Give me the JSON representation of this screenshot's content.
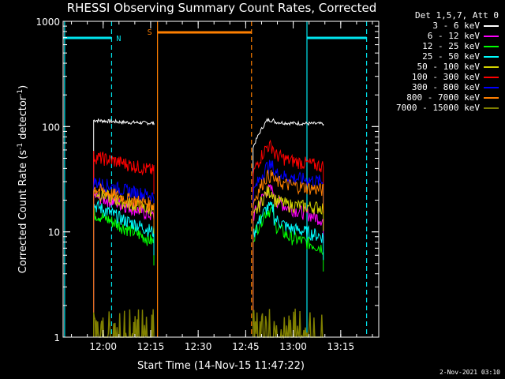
{
  "title": "RHESSI Observing Summary Count Rates, Corrected",
  "timestamp": "2-Nov-2021 03:10",
  "legend_header": "Det 1,5,7, Att 0",
  "colors": {
    "background": "#000000",
    "axes": "#ffffff",
    "night": "#00e5ee",
    "saa": "#ff7f00"
  },
  "chart_data": {
    "type": "line",
    "xlabel": "Start Time (14-Nov-15 11:47:22)",
    "ylabel_base": "Corrected Count Rate (s",
    "ylabel_mid": " detector",
    "ylabel_end": ")",
    "ylabel_exp": "-1",
    "y_scale": "log",
    "ylim": [
      1,
      1000
    ],
    "xlim": [
      "11:47:22",
      "13:27:00"
    ],
    "x_ticks": [
      "12:00",
      "12:15",
      "12:30",
      "12:45",
      "13:00",
      "13:15"
    ],
    "y_ticks": [
      "1",
      "10",
      "100",
      "1000"
    ],
    "flags": [
      {
        "label": "N",
        "color": "#00e5ee",
        "start": "11:47:22",
        "end": "12:02:40"
      },
      {
        "label": "S",
        "color": "#ff7f00",
        "start": "12:17:10",
        "end": "12:46:50"
      },
      {
        "label": "",
        "color": "#00e5ee",
        "start": "13:04:20",
        "end": "13:23:10"
      }
    ],
    "markers": [
      {
        "time": "11:47:50",
        "color": "#00e5ee",
        "style": "solid"
      },
      {
        "time": "12:02:40",
        "color": "#00e5ee",
        "style": "dashed"
      },
      {
        "time": "12:17:10",
        "color": "#ff7f00",
        "style": "solid"
      },
      {
        "time": "12:46:50",
        "color": "#ff7f00",
        "style": "dashed"
      },
      {
        "time": "13:04:20",
        "color": "#00e5ee",
        "style": "solid"
      },
      {
        "time": "13:23:10",
        "color": "#00e5ee",
        "style": "dashed"
      }
    ],
    "segments": [
      {
        "start": "11:57:00",
        "end": "12:16:00"
      },
      {
        "start": "12:47:20",
        "end": "13:09:30"
      }
    ],
    "series": [
      {
        "name": "3 - 6 keV",
        "color": "#ffffff",
        "seg1": [
          115,
          110,
          108
        ],
        "seg2": [
          115,
          108,
          106
        ]
      },
      {
        "name": "6 - 12 keV",
        "color": "#ff00ff",
        "seg1": [
          22,
          18,
          14
        ],
        "seg2": [
          25,
          17,
          13
        ]
      },
      {
        "name": "12 - 25 keV",
        "color": "#00ff00",
        "seg1": [
          15,
          11,
          8
        ],
        "seg2": [
          16,
          9,
          7
        ]
      },
      {
        "name": "25 - 50 keV",
        "color": "#00ffff",
        "seg1": [
          18,
          13,
          10
        ],
        "seg2": [
          17,
          11,
          9
        ]
      },
      {
        "name": "50 - 100 keV",
        "color": "#d4d400",
        "seg1": [
          24,
          19,
          16
        ],
        "seg2": [
          24,
          18,
          17
        ]
      },
      {
        "name": "100 - 300 keV",
        "color": "#ff0000",
        "seg1": [
          52,
          45,
          38
        ],
        "seg2": [
          65,
          48,
          42
        ]
      },
      {
        "name": "300 - 800 keV",
        "color": "#0000ff",
        "seg1": [
          30,
          25,
          22
        ],
        "seg2": [
          42,
          33,
          30
        ]
      },
      {
        "name": "800 - 7000 keV",
        "color": "#ff7f00",
        "seg1": [
          26,
          21,
          18
        ],
        "seg2": [
          34,
          28,
          25
        ]
      },
      {
        "name": "7000 - 15000 keV",
        "color": "#808000",
        "seg1": [
          1.9,
          1.0,
          1.0
        ],
        "seg2": [
          1.9,
          1.0,
          1.0
        ]
      }
    ]
  }
}
